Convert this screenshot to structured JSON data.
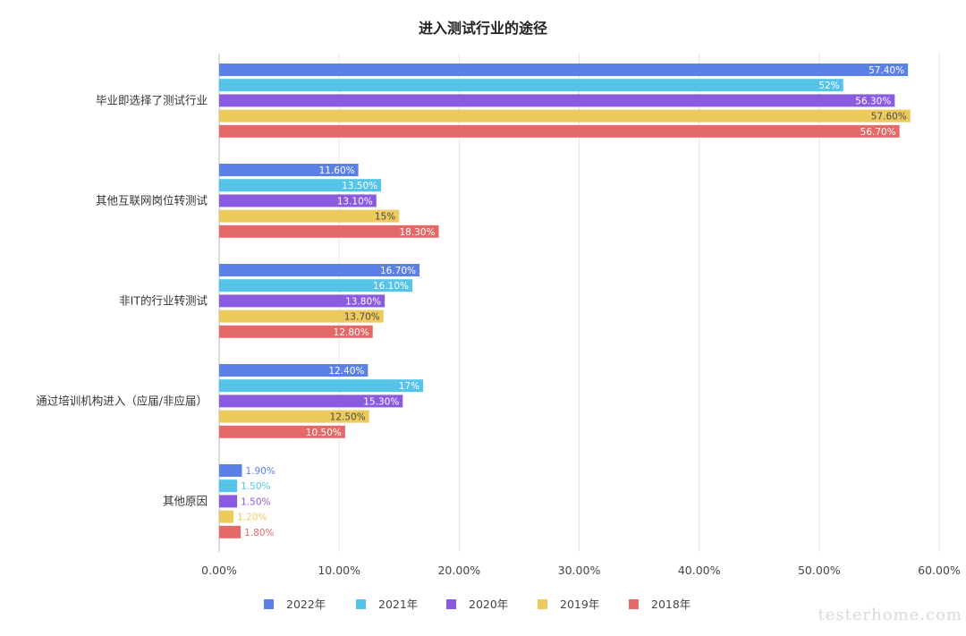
{
  "chart_data": {
    "type": "bar",
    "orientation": "horizontal",
    "title": "进入测试行业的途径",
    "categories": [
      "毕业即选择了测试行业",
      "其他互联网岗位转测试",
      "非IT的行业转测试",
      "通过培训机构进入（应届/非应届）",
      "其他原因"
    ],
    "series": [
      {
        "name": "2022年",
        "color": "#5b80e6",
        "values": [
          57.4,
          11.6,
          16.7,
          12.4,
          1.9
        ],
        "labels": [
          "57.40%",
          "11.60%",
          "16.70%",
          "12.40%",
          "1.90%"
        ]
      },
      {
        "name": "2021年",
        "color": "#55c4e8",
        "values": [
          52,
          13.5,
          16.1,
          17,
          1.5
        ],
        "labels": [
          "52%",
          "13.50%",
          "16.10%",
          "17%",
          "1.50%"
        ]
      },
      {
        "name": "2020年",
        "color": "#8a5ae0",
        "values": [
          56.3,
          13.1,
          13.8,
          15.3,
          1.5
        ],
        "labels": [
          "56.30%",
          "13.10%",
          "13.80%",
          "15.30%",
          "1.50%"
        ]
      },
      {
        "name": "2019年",
        "color": "#eccb5c",
        "values": [
          57.6,
          15,
          13.7,
          12.5,
          1.2
        ],
        "labels": [
          "57.60%",
          "15%",
          "13.70%",
          "12.50%",
          "1.20%"
        ]
      },
      {
        "name": "2018年",
        "color": "#e46a6a",
        "values": [
          56.7,
          18.3,
          12.8,
          10.5,
          1.8
        ],
        "labels": [
          "56.70%",
          "18.30%",
          "12.80%",
          "10.50%",
          "1.80%"
        ]
      }
    ],
    "xlim": [
      0,
      60
    ],
    "ticks": [
      0,
      10,
      20,
      30,
      40,
      50,
      60
    ],
    "tick_labels": [
      "0.00%",
      "10.00%",
      "20.00%",
      "30.00%",
      "40.00%",
      "50.00%",
      "60.00%"
    ],
    "grid": true,
    "legend_position": "bottom"
  },
  "watermark": "testerhome.com"
}
